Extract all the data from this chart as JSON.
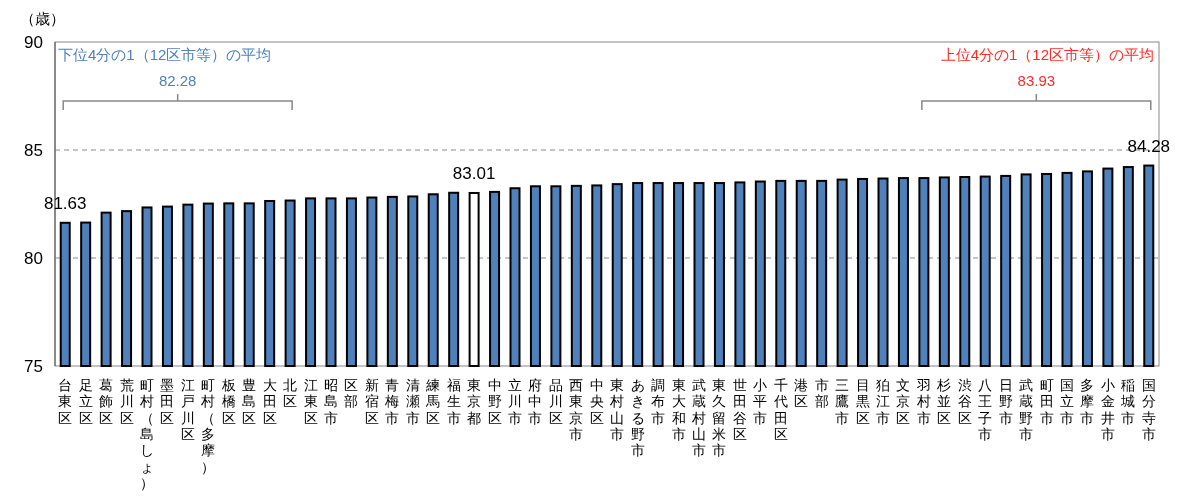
{
  "chart_data": {
    "type": "bar",
    "ylabel": "（歳）",
    "categories": [
      "台東区",
      "足立区",
      "葛飾区",
      "荒川区",
      "町村（島しょ）",
      "墨田区",
      "江戸川区",
      "町村（多摩）",
      "板橋区",
      "豊島区",
      "大田区",
      "北区",
      "江東区",
      "昭島市",
      "区部",
      "新宿区",
      "青梅市",
      "清瀬市",
      "練馬区",
      "福生市",
      "東京都",
      "中野区",
      "立川市",
      "府中市",
      "品川区",
      "西東京市",
      "中央区",
      "東村山市",
      "あきる野市",
      "調布市",
      "東大和市",
      "武蔵村山市",
      "東久留米市",
      "世田谷区",
      "小平市",
      "千代田区",
      "港区",
      "市部",
      "三鷹市",
      "目黒区",
      "狛江市",
      "文京区",
      "羽村市",
      "杉並区",
      "渋谷区",
      "八王子市",
      "日野市",
      "武蔵野市",
      "町田市",
      "国立市",
      "多摩市",
      "小金井市",
      "稲城市",
      "国分寺市"
    ],
    "values": [
      81.63,
      81.64,
      82.1,
      82.17,
      82.34,
      82.38,
      82.47,
      82.52,
      82.53,
      82.53,
      82.64,
      82.66,
      82.76,
      82.76,
      82.76,
      82.8,
      82.83,
      82.85,
      82.95,
      83.02,
      83.01,
      83.06,
      83.23,
      83.32,
      83.32,
      83.34,
      83.36,
      83.42,
      83.47,
      83.47,
      83.47,
      83.47,
      83.47,
      83.5,
      83.54,
      83.57,
      83.57,
      83.57,
      83.63,
      83.66,
      83.68,
      83.7,
      83.7,
      83.73,
      83.75,
      83.77,
      83.8,
      83.87,
      83.89,
      83.94,
      84.01,
      84.14,
      84.21,
      84.28
    ],
    "colors": [
      "#4f81bd",
      "#4f81bd",
      "#4f81bd",
      "#4f81bd",
      "#4f81bd",
      "#4f81bd",
      "#4f81bd",
      "#4f81bd",
      "#4f81bd",
      "#4f81bd",
      "#4f81bd",
      "#4f81bd",
      "#4f81bd",
      "#4f81bd",
      "#4f81bd",
      "#4f81bd",
      "#4f81bd",
      "#4f81bd",
      "#4f81bd",
      "#4f81bd",
      "#ffffff",
      "#4f81bd",
      "#4f81bd",
      "#4f81bd",
      "#4f81bd",
      "#4f81bd",
      "#4f81bd",
      "#4f81bd",
      "#4f81bd",
      "#4f81bd",
      "#4f81bd",
      "#4f81bd",
      "#4f81bd",
      "#4f81bd",
      "#4f81bd",
      "#4f81bd",
      "#4f81bd",
      "#4f81bd",
      "#4f81bd",
      "#4f81bd",
      "#4f81bd",
      "#4f81bd",
      "#4f81bd",
      "#4f81bd",
      "#4f81bd",
      "#4f81bd",
      "#4f81bd",
      "#4f81bd",
      "#4f81bd",
      "#4f81bd",
      "#4f81bd",
      "#4f81bd",
      "#4f81bd",
      "#4f81bd"
    ],
    "value_labels": [
      "81.63",
      null,
      null,
      null,
      null,
      null,
      null,
      null,
      null,
      null,
      null,
      null,
      null,
      null,
      null,
      null,
      null,
      null,
      null,
      null,
      "83.01",
      null,
      null,
      null,
      null,
      null,
      null,
      null,
      null,
      null,
      null,
      null,
      null,
      null,
      null,
      null,
      null,
      null,
      null,
      null,
      null,
      null,
      null,
      null,
      null,
      null,
      null,
      null,
      null,
      null,
      null,
      null,
      null,
      "84.28"
    ],
    "ylim": [
      75,
      90
    ],
    "yticks": [
      75,
      80,
      85,
      90
    ],
    "grid": "y",
    "annotations": [
      "下位4分の1（12区市等）の平均",
      "82.28",
      "上位4分の1（12区市等）の平均",
      "83.93"
    ]
  }
}
